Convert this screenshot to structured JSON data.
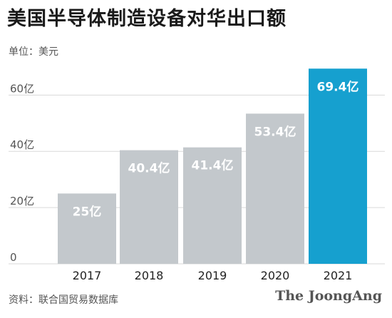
{
  "title": "美国半导体制造设备对华出口额",
  "unit_label": "单位：美元",
  "source": "资料：联合国贸易数据库",
  "logo": "The JoongAng",
  "colors": {
    "bar_default": "#c3c8cc",
    "bar_highlight": "#16a0cf",
    "grid": "#d9d9d9",
    "tick_text": "#555555",
    "bar_label": "#ffffff"
  },
  "chart_data": {
    "type": "bar",
    "categories": [
      "2017",
      "2018",
      "2019",
      "2020",
      "2021"
    ],
    "values": [
      25,
      40.4,
      41.4,
      53.4,
      69.4
    ],
    "value_labels": [
      "25亿",
      "40.4亿",
      "41.4亿",
      "53.4亿",
      "69.4亿"
    ],
    "yticks": [
      0,
      20,
      40,
      60
    ],
    "ytick_labels": [
      "0",
      "20亿",
      "40亿",
      "60亿"
    ],
    "ylim": [
      0,
      72
    ],
    "highlight_index": 4,
    "grid": true
  }
}
